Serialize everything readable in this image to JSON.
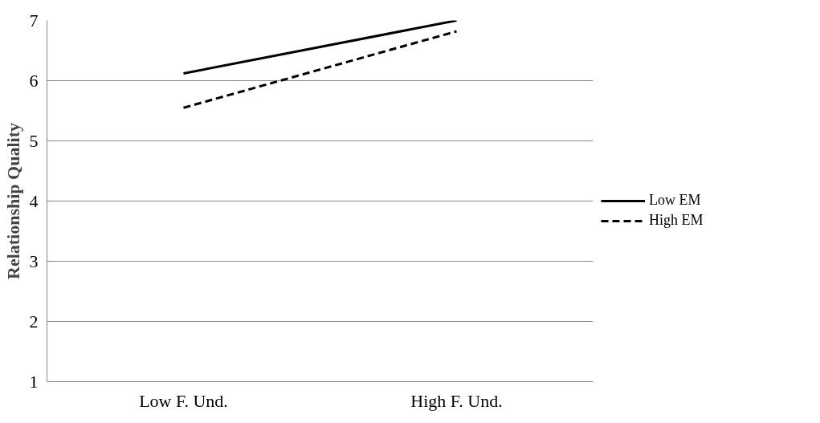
{
  "chart_data": {
    "type": "line",
    "ylabel": "Relationship Quality",
    "categories": [
      "Low F. Und.",
      "High F. Und."
    ],
    "series": [
      {
        "name": "Low EM",
        "color": "#000000",
        "values": [
          6.12,
          7.0
        ],
        "line_style": "solid"
      },
      {
        "name": "High EM",
        "color": "#000000",
        "values": [
          5.55,
          6.82
        ],
        "line_style": "dashed"
      }
    ],
    "ylim": [
      1,
      7
    ],
    "yticks": [
      1,
      2,
      3,
      4,
      5,
      6,
      7
    ],
    "grid": "y",
    "legend": "right"
  }
}
